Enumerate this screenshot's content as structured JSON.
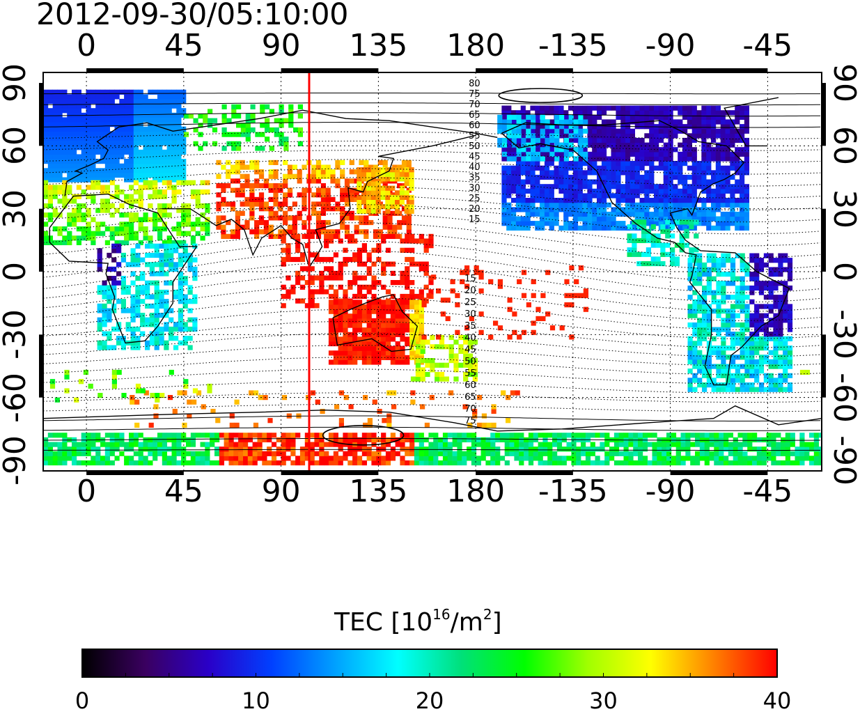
{
  "title": "2012-09-30/05:10:00",
  "map": {
    "lon_ticks": [
      "0",
      "45",
      "90",
      "135",
      "180",
      "-135",
      "-90",
      "-45"
    ],
    "lat_ticks": [
      "90",
      "60",
      "30",
      "0",
      "-30",
      "-60",
      "-90"
    ],
    "lon_range": [
      -20,
      340
    ],
    "lat_range": [
      -95,
      95
    ],
    "grid": true,
    "terminator_line": {
      "longitude": 103,
      "color": "#ff0000"
    },
    "contour_labels_north": [
      "80",
      "75",
      "70",
      "65",
      "60",
      "55",
      "50",
      "45",
      "40",
      "35",
      "30",
      "25",
      "20",
      "15"
    ],
    "contour_labels_south": [
      "15",
      "20",
      "25",
      "30",
      "35",
      "40",
      "45",
      "50",
      "55",
      "60",
      "65",
      "70",
      "75"
    ]
  },
  "colorbar": {
    "title_prefix": "TEC  [10",
    "title_exp": "16",
    "title_mid": "/m",
    "title_exp2": "2",
    "title_suffix": "]",
    "min": 0,
    "max": 40,
    "tick_labels": [
      "0",
      "10",
      "20",
      "30",
      "40"
    ],
    "stops": [
      "#000000",
      "#3a0060",
      "#2a00c8",
      "#0040ff",
      "#00a0ff",
      "#00ffff",
      "#00e07a",
      "#00ff00",
      "#a0ff00",
      "#ffff00",
      "#ff8000",
      "#ff0000"
    ]
  }
}
